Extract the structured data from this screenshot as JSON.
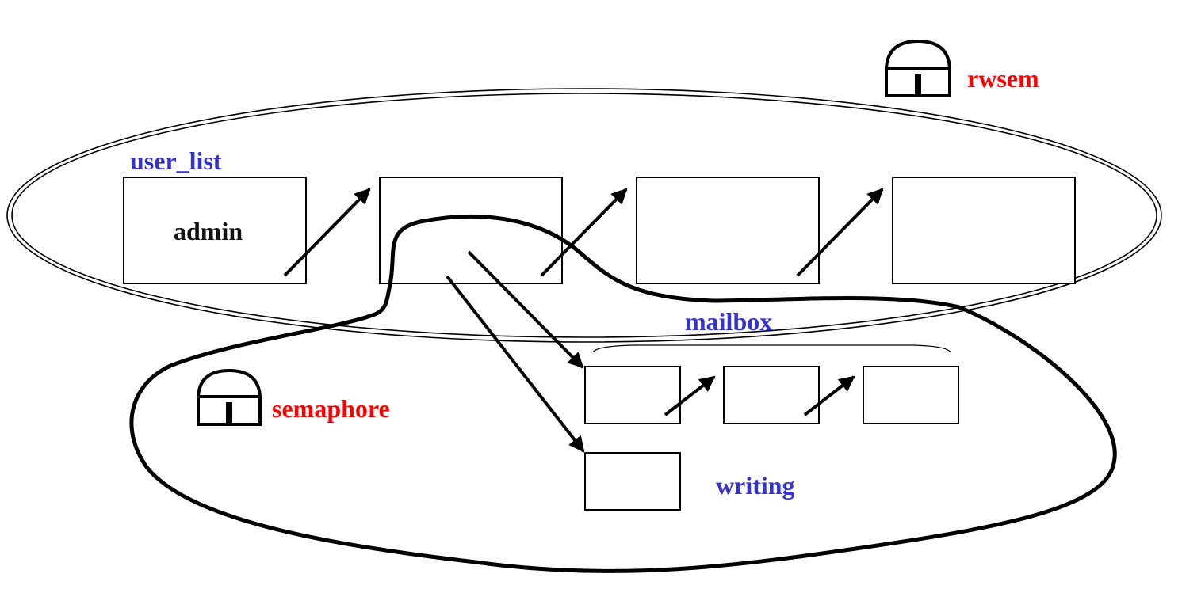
{
  "labels": {
    "user_list": "user_list",
    "admin": "admin",
    "rwsem": "rwsem",
    "semaphore": "semaphore",
    "mailbox": "mailbox",
    "writing": "writing"
  },
  "colors": {
    "region_label": "#3333cc",
    "lock_label": "#ff0000",
    "node_label": "#111111",
    "line": "#000000"
  },
  "icons": {
    "rwsem_lock": "padlock-icon",
    "semaphore_lock": "padlock-icon"
  }
}
